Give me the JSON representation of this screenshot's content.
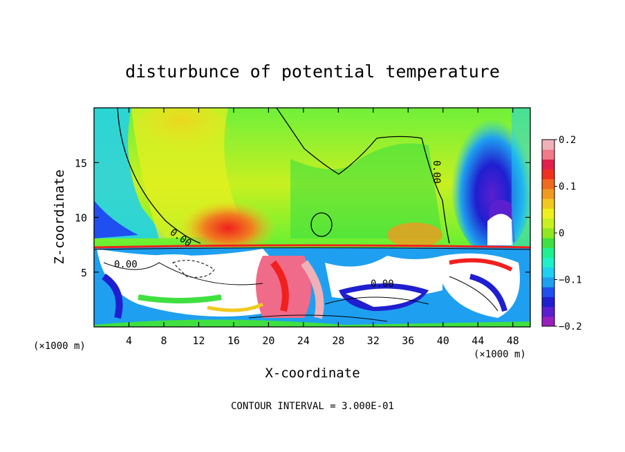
{
  "chart_data": {
    "type": "heatmap",
    "title": "disturbunce of potential temperature",
    "xlabel": "X-coordinate",
    "ylabel": "Z-coordinate",
    "x_unit": "(×1000 m)",
    "x_unit_right": "(×1000 m)",
    "xlim": [
      0,
      50
    ],
    "ylim": [
      0,
      20
    ],
    "xticks": [
      4,
      8,
      12,
      16,
      20,
      24,
      28,
      32,
      36,
      40,
      44,
      48
    ],
    "yticks": [
      5,
      10,
      15
    ],
    "colorbar": {
      "range": [
        -0.2,
        0.2
      ],
      "ticks": [
        {
          "value": 0.2,
          "label": "0.2"
        },
        {
          "value": 0.1,
          "label": "0.1"
        },
        {
          "value": 0,
          "label": "0"
        },
        {
          "value": -0.1,
          "label": "−0.1"
        },
        {
          "value": -0.2,
          "label": "−0.2"
        }
      ],
      "colors": [
        "#9a1fbf",
        "#5a1fcf",
        "#1f1fd0",
        "#1f4ff0",
        "#1f9ff0",
        "#1fd0f0",
        "#1ff0c8",
        "#1ff090",
        "#3fe040",
        "#8fe820",
        "#c8f020",
        "#f0f020",
        "#f0c820",
        "#f09a20",
        "#f06a1f",
        "#f0301f",
        "#e01f4f",
        "#f07a8a",
        "#f0b0b8"
      ]
    },
    "contour_labels": [
      "0.00",
      "0.00",
      "0.00",
      "0.00"
    ],
    "footer": "CONTOUR INTERVAL = 3.000E-01"
  }
}
